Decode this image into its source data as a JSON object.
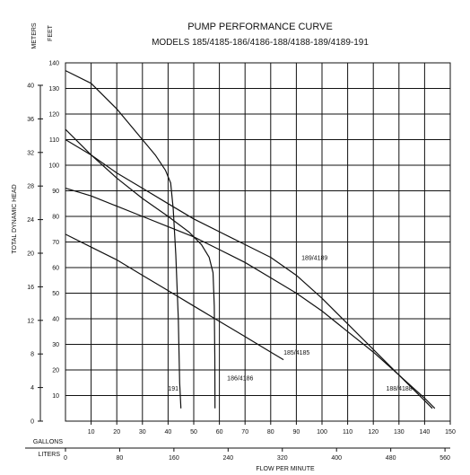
{
  "chart_data": {
    "type": "line",
    "title": "PUMP PERFORMANCE CURVE",
    "subtitle": "MODELS 185/4185-186/4186-188/4188-189/4189-191",
    "ylabel": "TOTAL DYNAMIC HEAD",
    "xlabel": "FLOW PER MINUTE",
    "unit_labels": {
      "meters": "METERS",
      "feet": "FEET",
      "gallons": "GALLONS",
      "liters": "LITERS"
    },
    "x_gallons": {
      "ticks": [
        10,
        20,
        30,
        40,
        50,
        60,
        70,
        80,
        90,
        100,
        110,
        120,
        130,
        140,
        150
      ],
      "range": [
        0,
        150
      ]
    },
    "x_liters_ticks": [
      "0",
      "80",
      "160",
      "240",
      "320",
      "400",
      "480",
      "560"
    ],
    "y_feet": {
      "ticks": [
        10,
        20,
        30,
        40,
        50,
        60,
        70,
        80,
        90,
        100,
        110,
        120,
        130,
        140
      ],
      "range": [
        0,
        140
      ]
    },
    "y_meters_ticks": [
      0,
      4,
      8,
      12,
      16,
      20,
      24,
      28,
      32,
      36,
      40
    ],
    "grid": true,
    "series": [
      {
        "name": "191",
        "label_at": [
          40,
          12
        ],
        "points": [
          [
            0,
            137
          ],
          [
            10,
            132
          ],
          [
            20,
            122
          ],
          [
            30,
            110
          ],
          [
            35,
            104
          ],
          [
            39,
            98
          ],
          [
            41,
            93
          ],
          [
            42,
            83
          ],
          [
            43,
            65
          ],
          [
            44,
            40
          ],
          [
            44.5,
            15
          ],
          [
            45,
            5
          ]
        ]
      },
      {
        "name": "186/4186",
        "label_at": [
          63,
          16
        ],
        "points": [
          [
            0,
            114
          ],
          [
            10,
            104
          ],
          [
            20,
            95
          ],
          [
            30,
            87
          ],
          [
            40,
            80
          ],
          [
            48,
            74
          ],
          [
            53,
            69
          ],
          [
            56,
            64
          ],
          [
            57.5,
            58
          ],
          [
            58,
            45
          ],
          [
            58.2,
            25
          ],
          [
            58.3,
            5
          ]
        ]
      },
      {
        "name": "185/4185",
        "label_at": [
          85,
          26
        ],
        "points": [
          [
            0,
            73
          ],
          [
            10,
            68
          ],
          [
            20,
            63
          ],
          [
            30,
            57
          ],
          [
            40,
            51
          ],
          [
            50,
            45
          ],
          [
            60,
            39
          ],
          [
            70,
            33
          ],
          [
            80,
            27
          ],
          [
            85,
            24
          ]
        ]
      },
      {
        "name": "188/4188",
        "label_at": [
          125,
          12
        ],
        "points": [
          [
            0,
            91
          ],
          [
            10,
            88
          ],
          [
            20,
            84
          ],
          [
            30,
            80
          ],
          [
            40,
            76
          ],
          [
            50,
            72
          ],
          [
            60,
            67
          ],
          [
            70,
            62
          ],
          [
            80,
            56
          ],
          [
            90,
            50
          ],
          [
            100,
            43
          ],
          [
            110,
            35
          ],
          [
            120,
            27
          ],
          [
            130,
            18
          ],
          [
            140,
            8
          ],
          [
            143,
            5
          ]
        ]
      },
      {
        "name": "189/4189",
        "label_at": [
          92,
          63
        ],
        "points": [
          [
            0,
            110
          ],
          [
            10,
            104
          ],
          [
            20,
            97
          ],
          [
            30,
            91
          ],
          [
            40,
            85
          ],
          [
            50,
            79
          ],
          [
            60,
            74
          ],
          [
            70,
            69
          ],
          [
            80,
            64
          ],
          [
            90,
            57
          ],
          [
            100,
            48
          ],
          [
            110,
            38
          ],
          [
            120,
            28
          ],
          [
            130,
            18
          ],
          [
            140,
            9
          ],
          [
            144,
            5
          ]
        ]
      }
    ]
  }
}
